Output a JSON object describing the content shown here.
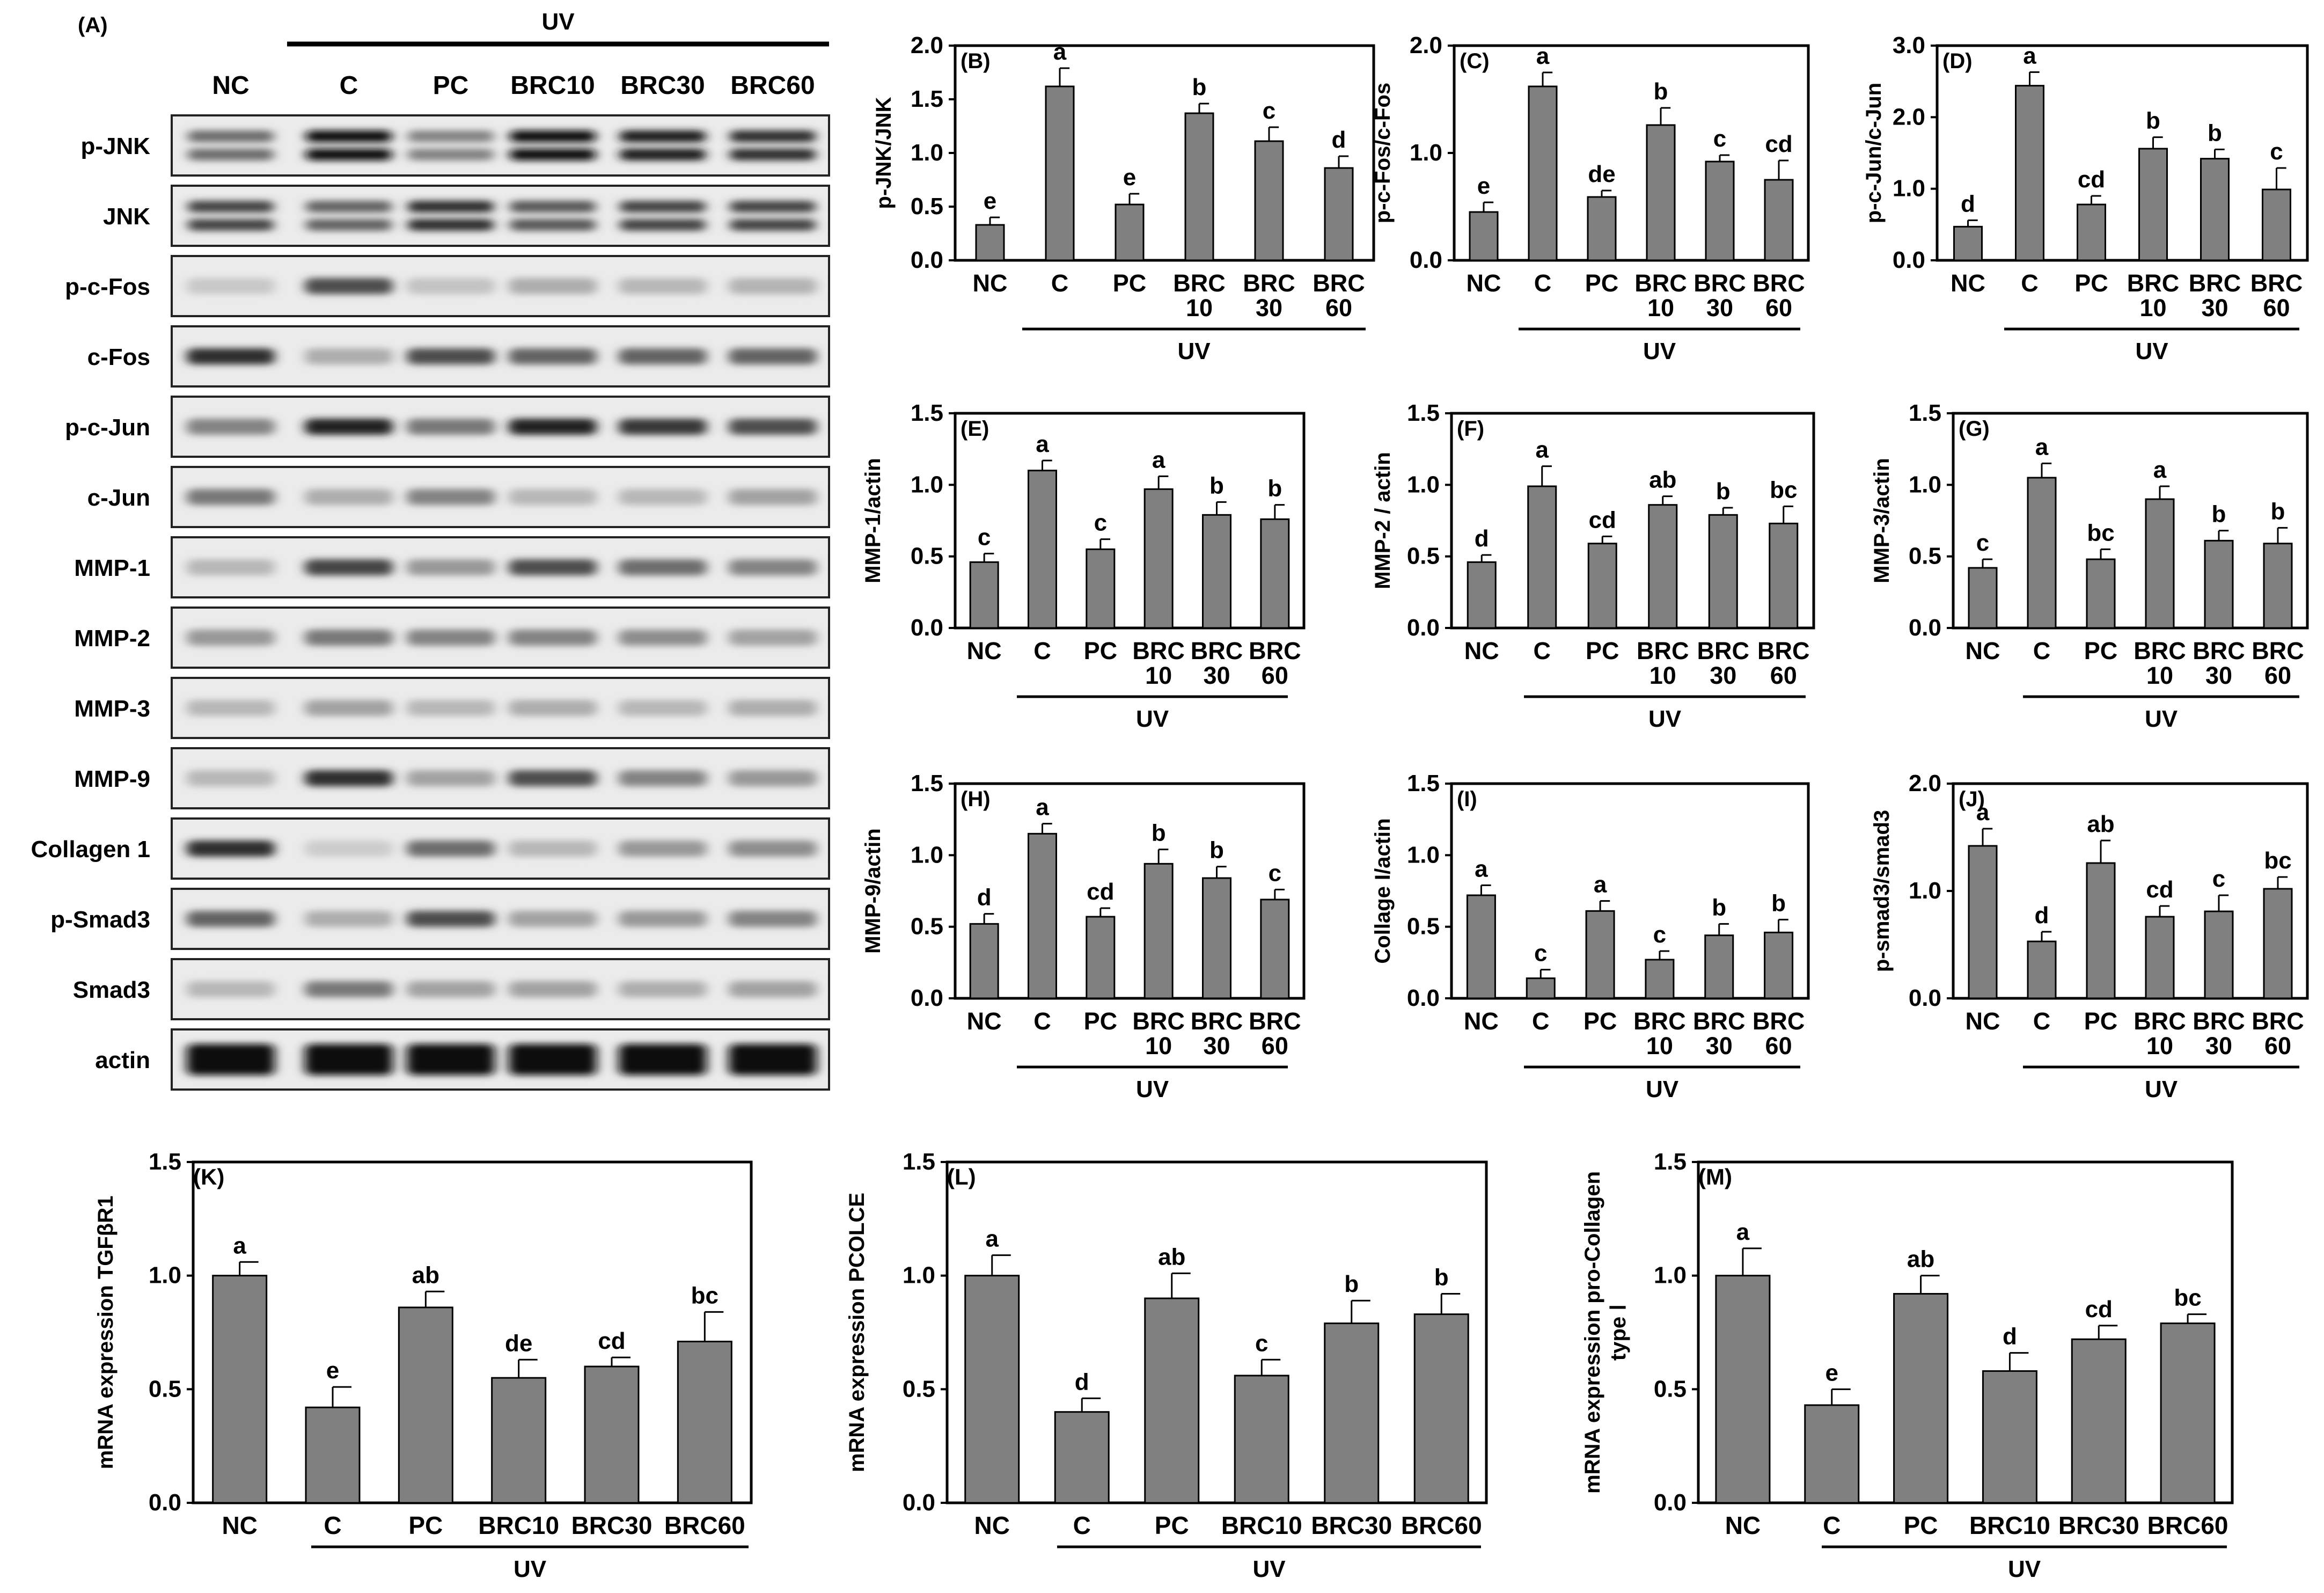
{
  "blot": {
    "panel_label": "(A)",
    "uv_label": "UV",
    "lanes": [
      "NC",
      "C",
      "PC",
      "BRC10",
      "BRC30",
      "BRC60"
    ],
    "rows": [
      {
        "label": "p-JNK",
        "intensity": [
          0.55,
          1.0,
          0.45,
          1.0,
          0.95,
          0.85
        ],
        "double": true
      },
      {
        "label": "JNK",
        "intensity": [
          0.75,
          0.6,
          0.85,
          0.65,
          0.75,
          0.75
        ],
        "double": true
      },
      {
        "label": "p-c-Fos",
        "intensity": [
          0.12,
          0.7,
          0.15,
          0.25,
          0.2,
          0.22
        ],
        "double": false
      },
      {
        "label": "c-Fos",
        "intensity": [
          0.85,
          0.25,
          0.7,
          0.6,
          0.6,
          0.6
        ],
        "double": false
      },
      {
        "label": "p-c-Jun",
        "intensity": [
          0.45,
          0.9,
          0.5,
          0.9,
          0.8,
          0.7
        ],
        "double": false
      },
      {
        "label": "c-Jun",
        "intensity": [
          0.5,
          0.25,
          0.45,
          0.2,
          0.2,
          0.3
        ],
        "double": false
      },
      {
        "label": "MMP-1",
        "intensity": [
          0.2,
          0.75,
          0.35,
          0.7,
          0.55,
          0.45
        ],
        "double": false
      },
      {
        "label": "MMP-2",
        "intensity": [
          0.35,
          0.5,
          0.45,
          0.45,
          0.4,
          0.3
        ],
        "double": false
      },
      {
        "label": "MMP-3",
        "intensity": [
          0.2,
          0.3,
          0.2,
          0.25,
          0.2,
          0.25
        ],
        "double": false
      },
      {
        "label": "MMP-9",
        "intensity": [
          0.2,
          0.85,
          0.3,
          0.7,
          0.45,
          0.35
        ],
        "double": false
      },
      {
        "label": "Collagen 1",
        "intensity": [
          0.85,
          0.1,
          0.55,
          0.2,
          0.35,
          0.4
        ],
        "double": false
      },
      {
        "label": "p-Smad3",
        "intensity": [
          0.6,
          0.25,
          0.7,
          0.3,
          0.35,
          0.45
        ],
        "double": false
      },
      {
        "label": "Smad3",
        "intensity": [
          0.2,
          0.5,
          0.3,
          0.3,
          0.25,
          0.3
        ],
        "double": false
      },
      {
        "label": "actin",
        "intensity": [
          1.0,
          1.0,
          1.0,
          1.0,
          1.0,
          1.0
        ],
        "double": false
      }
    ]
  },
  "chart_data": [
    {
      "panel": "(B)",
      "type": "bar",
      "ylabel": "p-JNK/JNK",
      "ylim": [
        0,
        2.0
      ],
      "yticks": [
        "0.0",
        "0.5",
        "1.0",
        "1.5",
        "2.0"
      ],
      "categories": [
        "NC",
        "C",
        "PC",
        "BRC\n10",
        "BRC\n30",
        "BRC\n60"
      ],
      "values": [
        0.33,
        1.62,
        0.52,
        1.37,
        1.11,
        0.86
      ],
      "errors": [
        0.07,
        0.17,
        0.1,
        0.09,
        0.13,
        0.11
      ],
      "letters": [
        "e",
        "a",
        "e",
        "b",
        "c",
        "d"
      ],
      "group_label": "UV"
    },
    {
      "panel": "(C)",
      "type": "bar",
      "ylabel": "p-c-Fos/c-Fos",
      "ylim": [
        0,
        2.0
      ],
      "yticks": [
        "0.0",
        "1.0",
        "2.0"
      ],
      "categories": [
        "NC",
        "C",
        "PC",
        "BRC\n10",
        "BRC\n30",
        "BRC\n60"
      ],
      "values": [
        0.45,
        1.62,
        0.59,
        1.26,
        0.92,
        0.75
      ],
      "errors": [
        0.09,
        0.13,
        0.06,
        0.16,
        0.06,
        0.18
      ],
      "letters": [
        "e",
        "a",
        "de",
        "b",
        "c",
        "cd"
      ],
      "group_label": "UV"
    },
    {
      "panel": "(D)",
      "type": "bar",
      "ylabel": "p-c-Jun/c-Jun",
      "ylim": [
        0,
        3.0
      ],
      "yticks": [
        "0.0",
        "1.0",
        "2.0",
        "3.0"
      ],
      "categories": [
        "NC",
        "C",
        "PC",
        "BRC\n10",
        "BRC\n30",
        "BRC\n60"
      ],
      "values": [
        0.47,
        2.44,
        0.78,
        1.56,
        1.42,
        0.99
      ],
      "errors": [
        0.09,
        0.19,
        0.12,
        0.16,
        0.13,
        0.3
      ],
      "letters": [
        "d",
        "a",
        "cd",
        "b",
        "b",
        "c"
      ],
      "group_label": "UV"
    },
    {
      "panel": "(E)",
      "type": "bar",
      "ylabel": "MMP-1/actin",
      "ylim": [
        0,
        1.5
      ],
      "yticks": [
        "0.0",
        "0.5",
        "1.0",
        "1.5"
      ],
      "categories": [
        "NC",
        "C",
        "PC",
        "BRC\n10",
        "BRC\n30",
        "BRC\n60"
      ],
      "values": [
        0.46,
        1.1,
        0.55,
        0.97,
        0.79,
        0.76
      ],
      "errors": [
        0.06,
        0.07,
        0.07,
        0.09,
        0.09,
        0.1
      ],
      "letters": [
        "c",
        "a",
        "c",
        "a",
        "b",
        "b"
      ],
      "group_label": "UV"
    },
    {
      "panel": "(F)",
      "type": "bar",
      "ylabel": "MMP-2 / actin",
      "ylim": [
        0,
        1.5
      ],
      "yticks": [
        "0.0",
        "0.5",
        "1.0",
        "1.5"
      ],
      "categories": [
        "NC",
        "C",
        "PC",
        "BRC\n10",
        "BRC\n30",
        "BRC\n60"
      ],
      "values": [
        0.46,
        0.99,
        0.59,
        0.86,
        0.79,
        0.73
      ],
      "errors": [
        0.05,
        0.14,
        0.05,
        0.06,
        0.05,
        0.12
      ],
      "letters": [
        "d",
        "a",
        "cd",
        "ab",
        "b",
        "bc"
      ],
      "group_label": "UV"
    },
    {
      "panel": "(G)",
      "type": "bar",
      "ylabel": "MMP-3/actin",
      "ylim": [
        0,
        1.5
      ],
      "yticks": [
        "0.0",
        "0.5",
        "1.0",
        "1.5"
      ],
      "categories": [
        "NC",
        "C",
        "PC",
        "BRC\n10",
        "BRC\n30",
        "BRC\n60"
      ],
      "values": [
        0.42,
        1.05,
        0.48,
        0.9,
        0.61,
        0.59
      ],
      "errors": [
        0.06,
        0.1,
        0.07,
        0.09,
        0.07,
        0.11
      ],
      "letters": [
        "c",
        "a",
        "bc",
        "a",
        "b",
        "b"
      ],
      "group_label": "UV"
    },
    {
      "panel": "(H)",
      "type": "bar",
      "ylabel": "MMP-9/actin",
      "ylim": [
        0,
        1.5
      ],
      "yticks": [
        "0.0",
        "0.5",
        "1.0",
        "1.5"
      ],
      "categories": [
        "NC",
        "C",
        "PC",
        "BRC\n10",
        "BRC\n30",
        "BRC\n60"
      ],
      "values": [
        0.52,
        1.15,
        0.57,
        0.94,
        0.84,
        0.69
      ],
      "errors": [
        0.07,
        0.07,
        0.06,
        0.1,
        0.08,
        0.07
      ],
      "letters": [
        "d",
        "a",
        "cd",
        "b",
        "b",
        "c"
      ],
      "group_label": "UV"
    },
    {
      "panel": "(I)",
      "type": "bar",
      "ylabel": "Collage I/actin",
      "ylim": [
        0,
        1.5
      ],
      "yticks": [
        "0.0",
        "0.5",
        "1.0",
        "1.5"
      ],
      "categories": [
        "NC",
        "C",
        "PC",
        "BRC\n10",
        "BRC\n30",
        "BRC\n60"
      ],
      "values": [
        0.72,
        0.14,
        0.61,
        0.27,
        0.44,
        0.46
      ],
      "errors": [
        0.07,
        0.06,
        0.07,
        0.06,
        0.08,
        0.09
      ],
      "letters": [
        "a",
        "c",
        "a",
        "c",
        "b",
        "b"
      ],
      "group_label": "UV"
    },
    {
      "panel": "(J)",
      "type": "bar",
      "ylabel": "p-smad3/smad3",
      "ylim": [
        0,
        2.0
      ],
      "yticks": [
        "0.0",
        "1.0",
        "2.0"
      ],
      "categories": [
        "NC",
        "C",
        "PC",
        "BRC\n10",
        "BRC\n30",
        "BRC\n60"
      ],
      "values": [
        1.42,
        0.53,
        1.26,
        0.76,
        0.81,
        1.02
      ],
      "errors": [
        0.16,
        0.09,
        0.21,
        0.1,
        0.15,
        0.11
      ],
      "letters": [
        "a",
        "d",
        "ab",
        "cd",
        "c",
        "bc"
      ],
      "group_label": "UV"
    },
    {
      "panel": "(K)",
      "type": "bar",
      "ylabel": "mRNA expression TGFβR1",
      "ylim": [
        0,
        1.5
      ],
      "yticks": [
        "0.0",
        "0.5",
        "1.0",
        "1.5"
      ],
      "categories": [
        "NC",
        "C",
        "PC",
        "BRC10",
        "BRC30",
        "BRC60"
      ],
      "values": [
        1.0,
        0.42,
        0.86,
        0.55,
        0.6,
        0.71
      ],
      "errors": [
        0.06,
        0.09,
        0.07,
        0.08,
        0.04,
        0.13
      ],
      "letters": [
        "a",
        "e",
        "ab",
        "de",
        "cd",
        "bc"
      ],
      "group_label": "UV"
    },
    {
      "panel": "(L)",
      "type": "bar",
      "ylabel": "mRNA expression PCOLCE",
      "ylim": [
        0,
        1.5
      ],
      "yticks": [
        "0.0",
        "0.5",
        "1.0",
        "1.5"
      ],
      "categories": [
        "NC",
        "C",
        "PC",
        "BRC10",
        "BRC30",
        "BRC60"
      ],
      "values": [
        1.0,
        0.4,
        0.9,
        0.56,
        0.79,
        0.83
      ],
      "errors": [
        0.09,
        0.06,
        0.11,
        0.07,
        0.1,
        0.09
      ],
      "letters": [
        "a",
        "d",
        "ab",
        "c",
        "b",
        "b"
      ],
      "group_label": "UV"
    },
    {
      "panel": "(M)",
      "type": "bar",
      "ylabel": "mRNA expression pro-Collagen\ntype Ⅰ",
      "ylim": [
        0,
        1.5
      ],
      "yticks": [
        "0.0",
        "0.5",
        "1.0",
        "1.5"
      ],
      "categories": [
        "NC",
        "C",
        "PC",
        "BRC10",
        "BRC30",
        "BRC60"
      ],
      "values": [
        1.0,
        0.43,
        0.92,
        0.58,
        0.72,
        0.79
      ],
      "errors": [
        0.12,
        0.07,
        0.08,
        0.08,
        0.06,
        0.04
      ],
      "letters": [
        "a",
        "e",
        "ab",
        "d",
        "cd",
        "bc"
      ],
      "group_label": "UV"
    }
  ],
  "colors": {
    "bar": "#808080",
    "line": "#000000",
    "text": "#000000"
  }
}
